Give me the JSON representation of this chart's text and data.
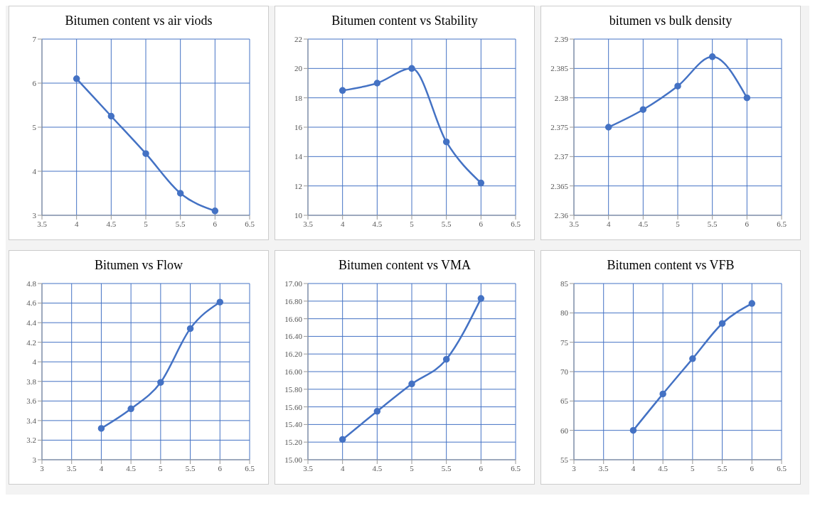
{
  "chart_data": [
    {
      "type": "line",
      "title": "Bitumen content vs air viods",
      "x": [
        4,
        4.5,
        5,
        5.5,
        6
      ],
      "values": [
        6.1,
        5.25,
        4.4,
        3.5,
        3.1
      ],
      "color": "#4472c4",
      "xlim": [
        3.5,
        6.5
      ],
      "xticks": [
        3.5,
        4,
        4.5,
        5,
        5.5,
        6,
        6.5
      ],
      "ylim": [
        3,
        7
      ],
      "yticks": [
        3,
        4,
        5,
        6,
        7
      ],
      "grid": true,
      "marker": "circle"
    },
    {
      "type": "line",
      "title": "Bitumen content vs Stability",
      "x": [
        4,
        4.5,
        5,
        5.5,
        6
      ],
      "values": [
        18.5,
        19,
        20,
        15,
        12.2
      ],
      "color": "#4472c4",
      "xlim": [
        3.5,
        6.5
      ],
      "xticks": [
        3.5,
        4,
        4.5,
        5,
        5.5,
        6,
        6.5
      ],
      "ylim": [
        10,
        22
      ],
      "yticks": [
        10,
        12,
        14,
        16,
        18,
        20,
        22
      ],
      "grid": true,
      "marker": "circle"
    },
    {
      "type": "line",
      "title": "bitumen vs bulk density",
      "x": [
        4,
        4.5,
        5,
        5.5,
        6
      ],
      "values": [
        2.375,
        2.378,
        2.382,
        2.387,
        2.38
      ],
      "color": "#4472c4",
      "xlim": [
        3.5,
        6.5
      ],
      "xticks": [
        3.5,
        4,
        4.5,
        5,
        5.5,
        6,
        6.5
      ],
      "ylim": [
        2.36,
        2.39
      ],
      "yticks": [
        2.36,
        2.365,
        2.37,
        2.375,
        2.38,
        2.385,
        2.39
      ],
      "grid": true,
      "marker": "circle"
    },
    {
      "type": "line",
      "title": "Bitumen vs Flow",
      "x": [
        4,
        4.5,
        5,
        5.5,
        6
      ],
      "values": [
        3.32,
        3.52,
        3.79,
        4.34,
        4.61
      ],
      "color": "#4472c4",
      "xlim": [
        3,
        6.5
      ],
      "xticks": [
        3,
        3.5,
        4,
        4.5,
        5,
        5.5,
        6,
        6.5
      ],
      "ylim": [
        3,
        4.8
      ],
      "yticks": [
        3,
        3.2,
        3.4,
        3.6,
        3.8,
        4,
        4.2,
        4.4,
        4.6,
        4.8
      ],
      "grid": true,
      "marker": "circle"
    },
    {
      "type": "line",
      "title": "Bitumen content vs VMA",
      "x": [
        4,
        4.5,
        5,
        5.5,
        6
      ],
      "values": [
        15.23,
        15.55,
        15.86,
        16.14,
        16.83
      ],
      "color": "#4472c4",
      "xlim": [
        3.5,
        6.5
      ],
      "xticks": [
        3.5,
        4,
        4.5,
        5,
        5.5,
        6,
        6.5
      ],
      "ylim": [
        15,
        17
      ],
      "yticks": [
        {
          "value": 15,
          "label": "15.00"
        },
        {
          "value": 15.2,
          "label": "15.20"
        },
        {
          "value": 15.4,
          "label": "15.40"
        },
        {
          "value": 15.6,
          "label": "15.60"
        },
        {
          "value": 15.8,
          "label": "15.80"
        },
        {
          "value": 16,
          "label": "16.00"
        },
        {
          "value": 16.2,
          "label": "16.20"
        },
        {
          "value": 16.4,
          "label": "16.40"
        },
        {
          "value": 16.6,
          "label": "16.60"
        },
        {
          "value": 16.8,
          "label": "16.80"
        },
        {
          "value": 17,
          "label": "17.00"
        }
      ],
      "grid": true,
      "marker": "circle"
    },
    {
      "type": "line",
      "title": "Bitumen content vs VFB",
      "x": [
        4,
        4.5,
        5,
        5.5,
        6
      ],
      "values": [
        60,
        66.2,
        72.2,
        78.2,
        81.6
      ],
      "color": "#4472c4",
      "xlim": [
        3,
        6.5
      ],
      "xticks": [
        3,
        3.5,
        4,
        4.5,
        5,
        5.5,
        6,
        6.5
      ],
      "ylim": [
        55,
        85
      ],
      "yticks": [
        55,
        60,
        65,
        70,
        75,
        80,
        85
      ],
      "grid": true,
      "marker": "circle"
    }
  ]
}
